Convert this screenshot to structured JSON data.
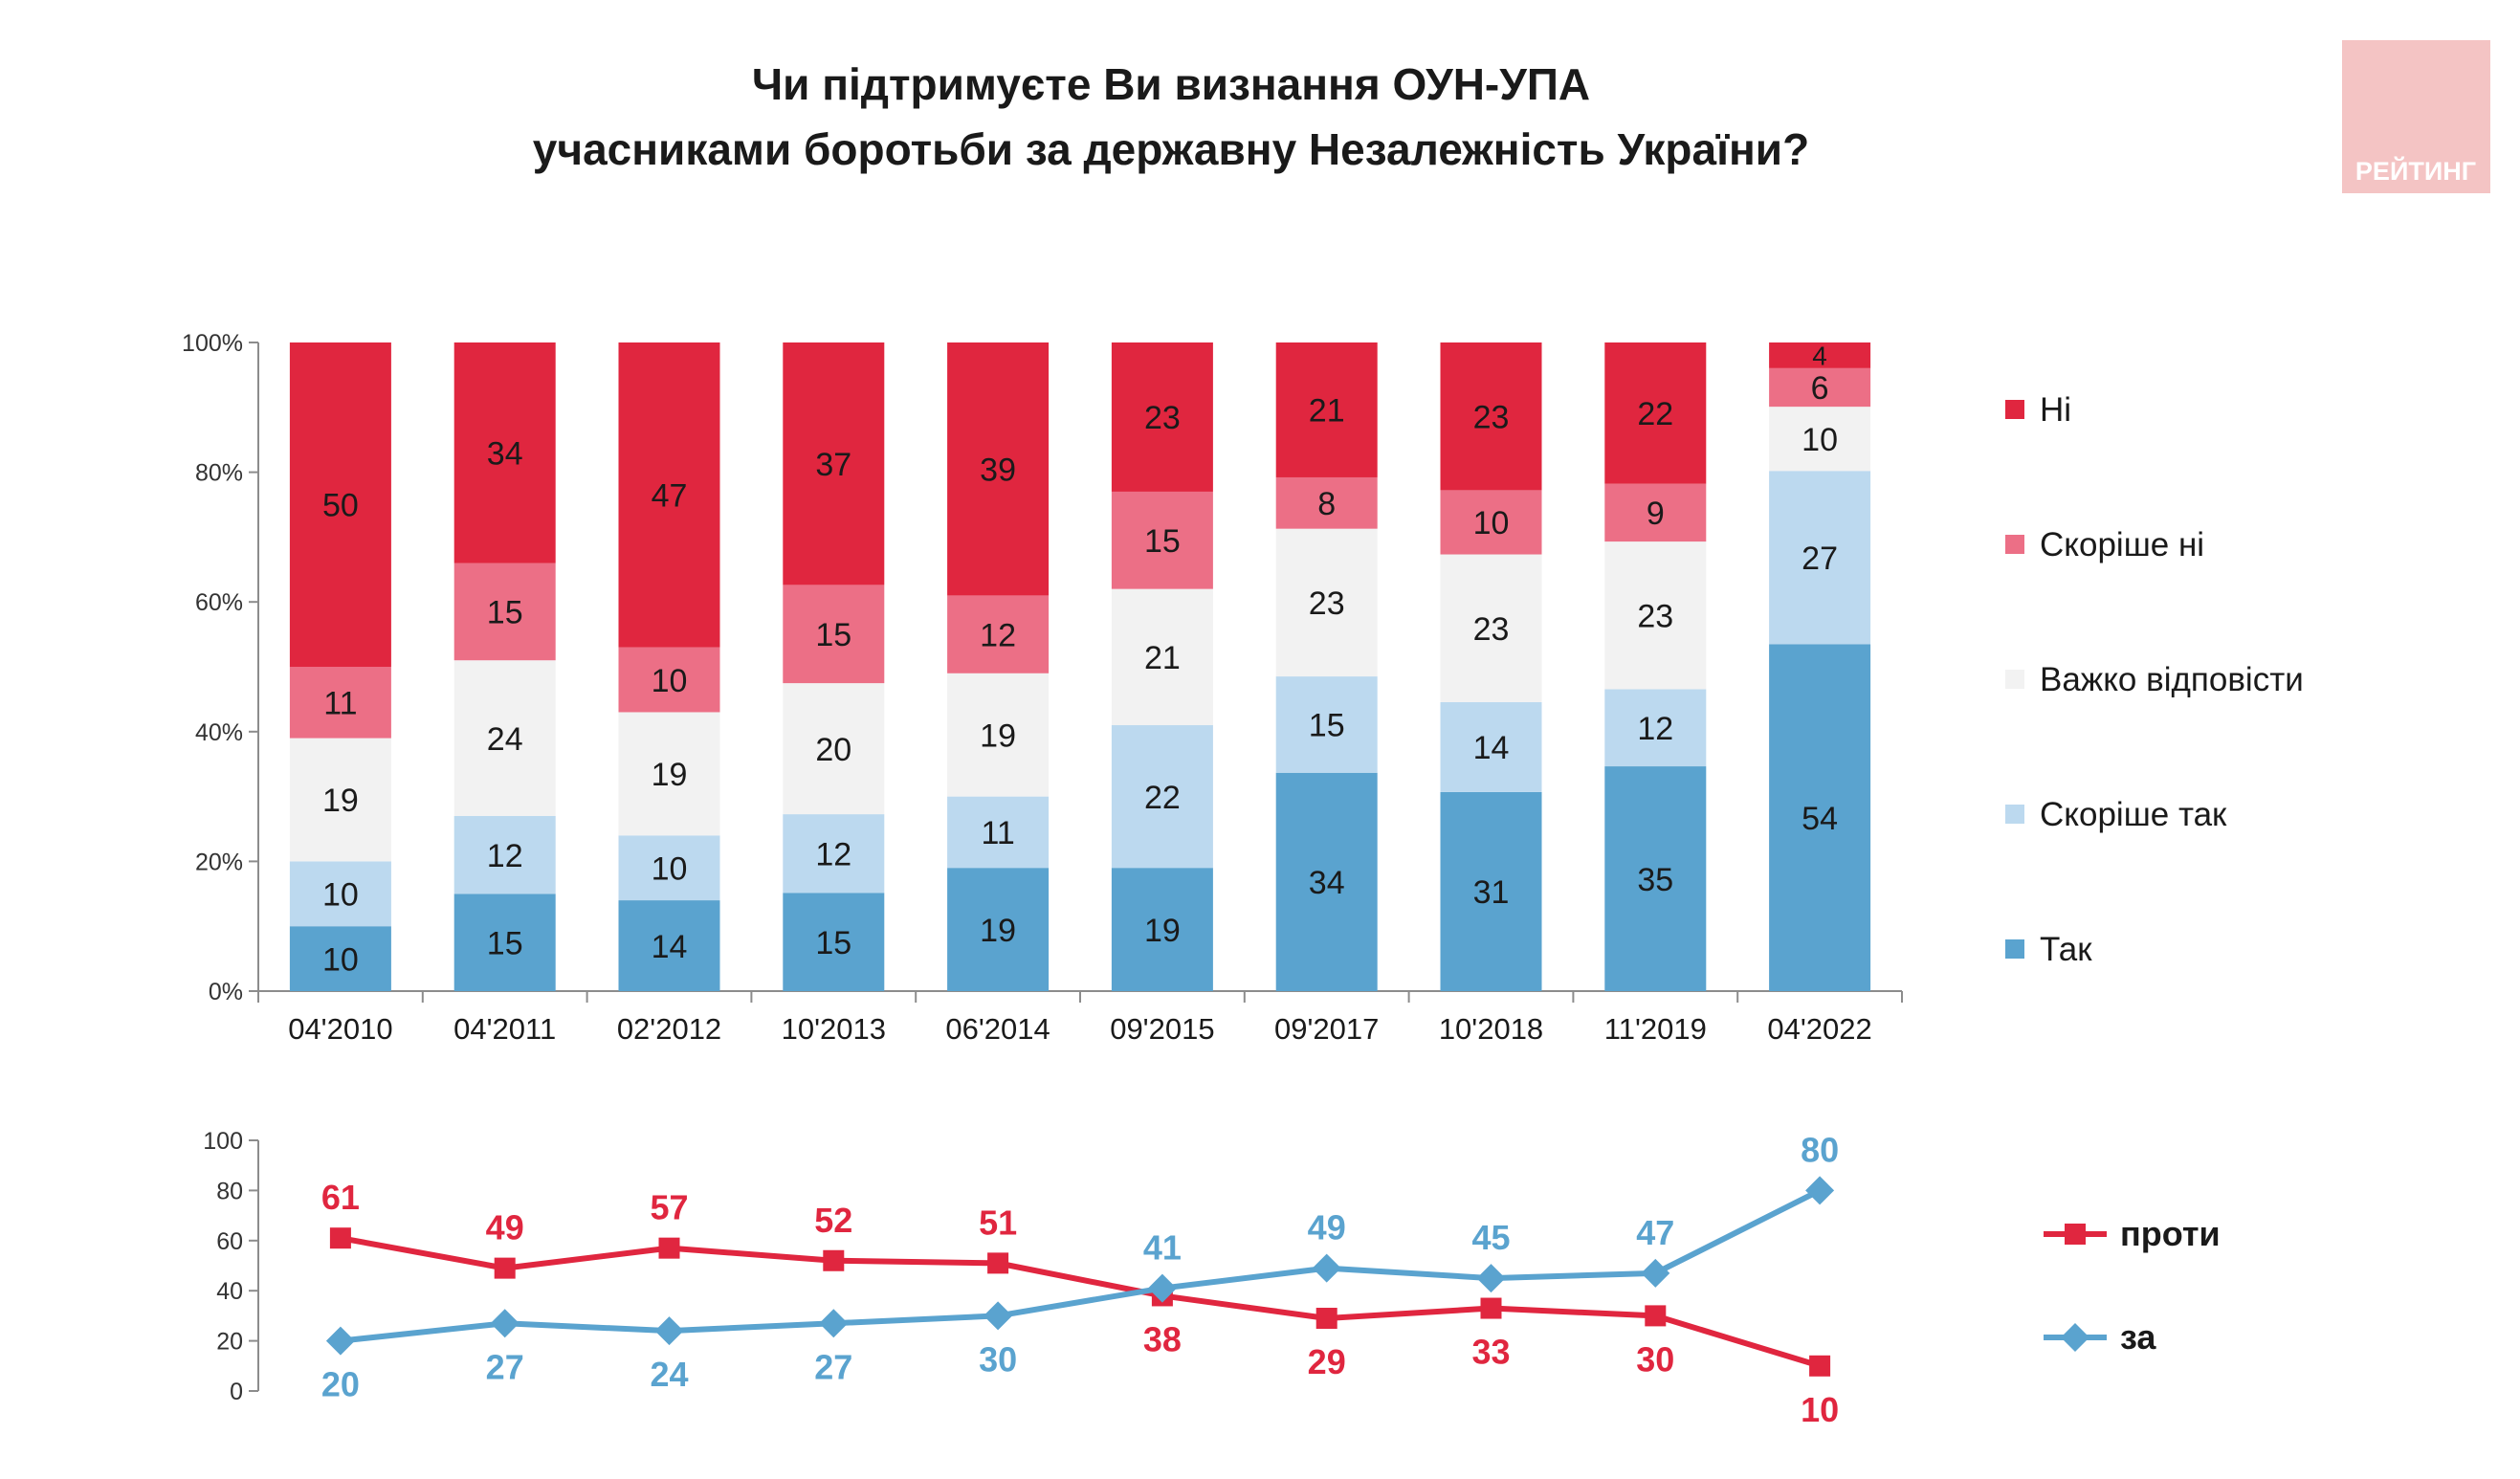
{
  "header": {
    "title_line1": "Чи підтримуєте Ви визнання ОУН-УПА",
    "title_line2": "учасниками боротьби за державну Незалежність України?",
    "logo_text": "РЕЙТИНГ"
  },
  "colors": {
    "no": "#e0263f",
    "rather_no": "#ec6f86",
    "hard": "#f2f2f2",
    "rather_yes": "#bcd9ef",
    "yes": "#5aa3cf",
    "against_line": "#e0263f",
    "for_line": "#5aa3cf",
    "logo_bg": "#f4c4c4"
  },
  "chart_data": [
    {
      "type": "bar",
      "stacked": true,
      "categories": [
        "04'2010",
        "04'2011",
        "02'2012",
        "10'2013",
        "06'2014",
        "09'2015",
        "09'2017",
        "10'2018",
        "11'2019",
        "04'2022"
      ],
      "series": [
        {
          "name": "Так",
          "key": "yes",
          "values": [
            10,
            15,
            14,
            15,
            19,
            19,
            34,
            31,
            35,
            54
          ]
        },
        {
          "name": "Скоріше так",
          "key": "rather_yes",
          "values": [
            10,
            12,
            10,
            12,
            11,
            22,
            15,
            14,
            12,
            27
          ]
        },
        {
          "name": "Важко відповісти",
          "key": "hard",
          "values": [
            19,
            24,
            19,
            20,
            19,
            21,
            23,
            23,
            23,
            10
          ]
        },
        {
          "name": "Скоріше ні",
          "key": "rather_no",
          "values": [
            11,
            15,
            10,
            15,
            12,
            15,
            8,
            10,
            9,
            6
          ]
        },
        {
          "name": "Ні",
          "key": "no",
          "values": [
            50,
            34,
            47,
            37,
            39,
            23,
            21,
            23,
            22,
            4
          ]
        }
      ],
      "yticks": [
        "0%",
        "20%",
        "40%",
        "60%",
        "80%",
        "100%"
      ],
      "ylim": [
        0,
        100
      ],
      "legend_position": "right",
      "grid": false
    },
    {
      "type": "line",
      "categories": [
        "04'2010",
        "04'2011",
        "02'2012",
        "10'2013",
        "06'2014",
        "09'2015",
        "09'2017",
        "10'2018",
        "11'2019",
        "04'2022"
      ],
      "series": [
        {
          "name": "проти",
          "key": "against_line",
          "marker": "square",
          "values": [
            61,
            49,
            57,
            52,
            51,
            38,
            29,
            33,
            30,
            10
          ]
        },
        {
          "name": "за",
          "key": "for_line",
          "marker": "diamond",
          "values": [
            20,
            27,
            24,
            27,
            30,
            41,
            49,
            45,
            47,
            80
          ]
        }
      ],
      "yticks": [
        "0",
        "20",
        "40",
        "60",
        "80",
        "100"
      ],
      "ylim": [
        0,
        100
      ],
      "legend_position": "right",
      "grid": false
    }
  ]
}
